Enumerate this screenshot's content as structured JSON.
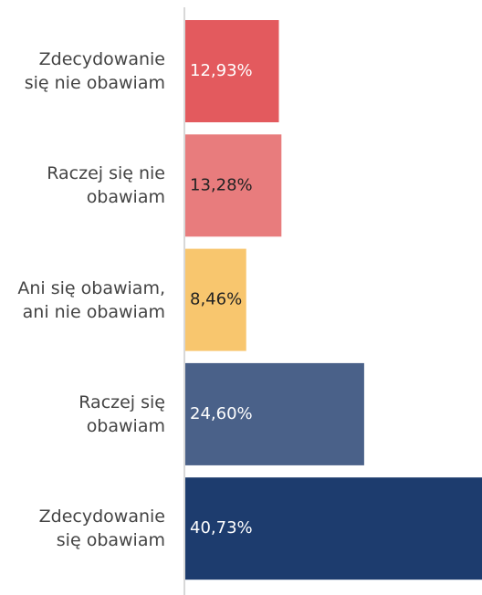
{
  "chart_data": {
    "type": "bar",
    "orientation": "horizontal",
    "categories": [
      "Zdecydowanie\nsię nie obawiam",
      "Raczej się nie\nobawiam",
      "Ani się obawiam,\nani nie obawiam",
      "Raczej się\nobawiam",
      "Zdecydowanie\nsię obawiam"
    ],
    "values": [
      12.93,
      13.28,
      8.46,
      24.6,
      40.73
    ],
    "value_labels": [
      "12,93%",
      "13,28%",
      "8,46%",
      "24,60%",
      "40,73%"
    ],
    "colors": [
      "#e35a5e",
      "#e87c7d",
      "#f8c66e",
      "#4a6189",
      "#1d3c6e"
    ]
  }
}
